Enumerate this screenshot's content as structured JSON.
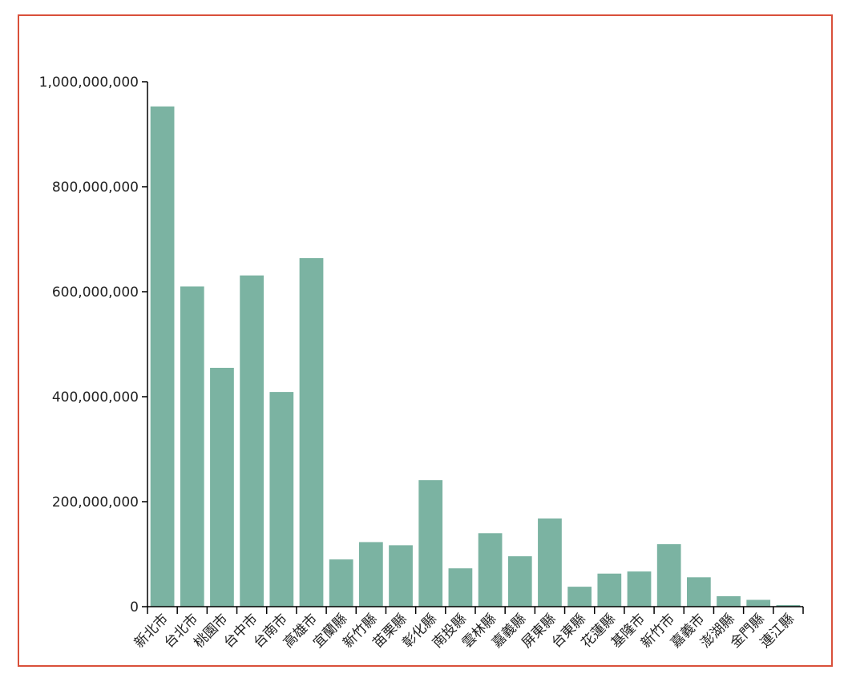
{
  "chart_data": {
    "type": "bar",
    "categories": [
      "新北市",
      "台北市",
      "桃園市",
      "台中市",
      "台南市",
      "高雄市",
      "宜蘭縣",
      "新竹縣",
      "苗栗縣",
      "彰化縣",
      "南投縣",
      "雲林縣",
      "嘉義縣",
      "屏東縣",
      "台東縣",
      "花蓮縣",
      "基隆市",
      "新竹市",
      "嘉義市",
      "澎湖縣",
      "金門縣",
      "連江縣"
    ],
    "values": [
      953000000,
      610000000,
      455000000,
      631000000,
      409000000,
      664000000,
      90000000,
      123000000,
      117000000,
      241000000,
      73000000,
      140000000,
      96000000,
      168000000,
      38000000,
      63000000,
      67000000,
      119000000,
      56000000,
      20000000,
      13000000,
      3000000
    ],
    "ylim": [
      0,
      1000000000
    ],
    "yticks": [
      0,
      200000000,
      400000000,
      600000000,
      800000000,
      1000000000
    ],
    "ytick_labels": [
      "0",
      "200,000,000",
      "400,000,000",
      "600,000,000",
      "800,000,000",
      "1,000,000,000"
    ],
    "bar_color": "#7bb3a2",
    "frame_color": "#d9503a",
    "title": "",
    "xlabel": "",
    "ylabel": "",
    "grid": false
  }
}
